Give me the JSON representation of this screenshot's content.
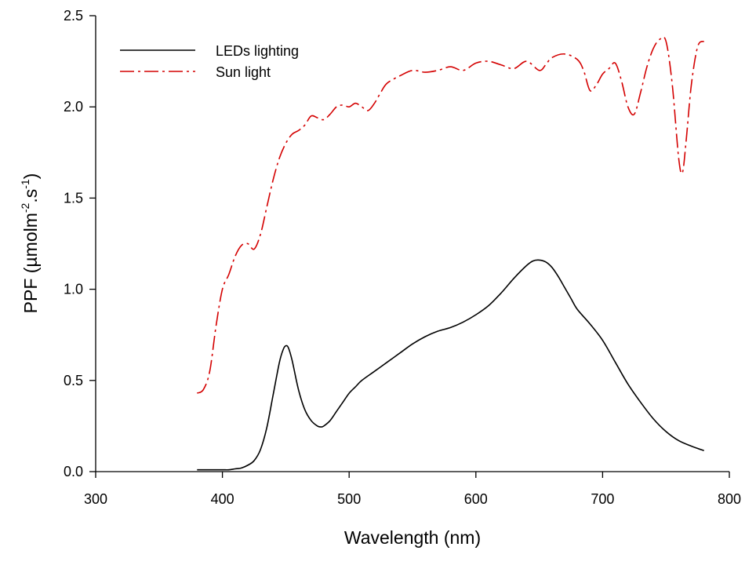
{
  "chart_data": {
    "type": "line",
    "title": "",
    "xlabel": "Wavelength (nm)",
    "ylabel": {
      "base": "PPF (",
      "unit_main": "µmolm",
      "exp1": "-2",
      "mid": ".s",
      "exp2": "-1",
      "close": ")"
    },
    "xlim": [
      300,
      800
    ],
    "ylim": [
      0,
      2.5
    ],
    "xticks": [
      300,
      400,
      500,
      600,
      700,
      800
    ],
    "xtick_labels": [
      "300",
      "400",
      "500",
      "600",
      "700",
      "800"
    ],
    "yticks": [
      0,
      0.5,
      1.0,
      1.5,
      2.0,
      2.5
    ],
    "ytick_labels": [
      "0.0",
      "0.5",
      "1.0",
      "1.5",
      "2.0",
      "2.5"
    ],
    "grid": false,
    "legend_position": "top-left",
    "series": [
      {
        "name": "LEDs lighting",
        "color": "#000000",
        "dash": "solid",
        "x": [
          380,
          390,
          400,
          405,
          410,
          415,
          420,
          425,
          430,
          435,
          440,
          445,
          448,
          450,
          452,
          455,
          460,
          465,
          470,
          475,
          478,
          480,
          485,
          490,
          495,
          500,
          505,
          510,
          520,
          530,
          540,
          550,
          560,
          570,
          580,
          590,
          600,
          610,
          620,
          630,
          640,
          645,
          650,
          655,
          660,
          665,
          670,
          675,
          680,
          690,
          700,
          710,
          720,
          730,
          740,
          750,
          760,
          770,
          780
        ],
        "y": [
          0.01,
          0.01,
          0.01,
          0.01,
          0.015,
          0.02,
          0.035,
          0.06,
          0.12,
          0.24,
          0.42,
          0.6,
          0.67,
          0.69,
          0.68,
          0.61,
          0.45,
          0.34,
          0.28,
          0.25,
          0.245,
          0.25,
          0.28,
          0.33,
          0.38,
          0.43,
          0.465,
          0.5,
          0.55,
          0.6,
          0.65,
          0.7,
          0.74,
          0.77,
          0.79,
          0.82,
          0.86,
          0.91,
          0.98,
          1.06,
          1.13,
          1.155,
          1.16,
          1.15,
          1.12,
          1.07,
          1.01,
          0.95,
          0.89,
          0.81,
          0.72,
          0.6,
          0.48,
          0.38,
          0.29,
          0.22,
          0.17,
          0.14,
          0.115
        ]
      },
      {
        "name": "Sun light",
        "color": "#d40000",
        "dash": "dash-dot",
        "x": [
          380,
          385,
          390,
          395,
          400,
          405,
          410,
          415,
          420,
          425,
          430,
          435,
          440,
          445,
          450,
          455,
          460,
          465,
          470,
          475,
          480,
          485,
          490,
          495,
          500,
          505,
          510,
          515,
          520,
          525,
          530,
          540,
          550,
          560,
          570,
          580,
          590,
          600,
          610,
          620,
          630,
          640,
          650,
          655,
          660,
          670,
          680,
          685,
          690,
          695,
          700,
          705,
          710,
          715,
          720,
          725,
          730,
          735,
          740,
          745,
          750,
          755,
          760,
          763,
          766,
          770,
          775,
          780
        ],
        "y": [
          0.43,
          0.45,
          0.55,
          0.8,
          1.0,
          1.08,
          1.18,
          1.24,
          1.25,
          1.22,
          1.3,
          1.45,
          1.6,
          1.72,
          1.8,
          1.85,
          1.87,
          1.9,
          1.95,
          1.94,
          1.93,
          1.96,
          2.0,
          2.01,
          2.0,
          2.02,
          2.0,
          1.98,
          2.02,
          2.08,
          2.13,
          2.17,
          2.2,
          2.19,
          2.2,
          2.22,
          2.2,
          2.24,
          2.25,
          2.23,
          2.21,
          2.25,
          2.2,
          2.23,
          2.27,
          2.29,
          2.26,
          2.2,
          2.09,
          2.12,
          2.18,
          2.21,
          2.24,
          2.14,
          2.0,
          1.96,
          2.08,
          2.22,
          2.32,
          2.37,
          2.36,
          2.12,
          1.72,
          1.64,
          1.82,
          2.12,
          2.33,
          2.36
        ]
      }
    ]
  }
}
